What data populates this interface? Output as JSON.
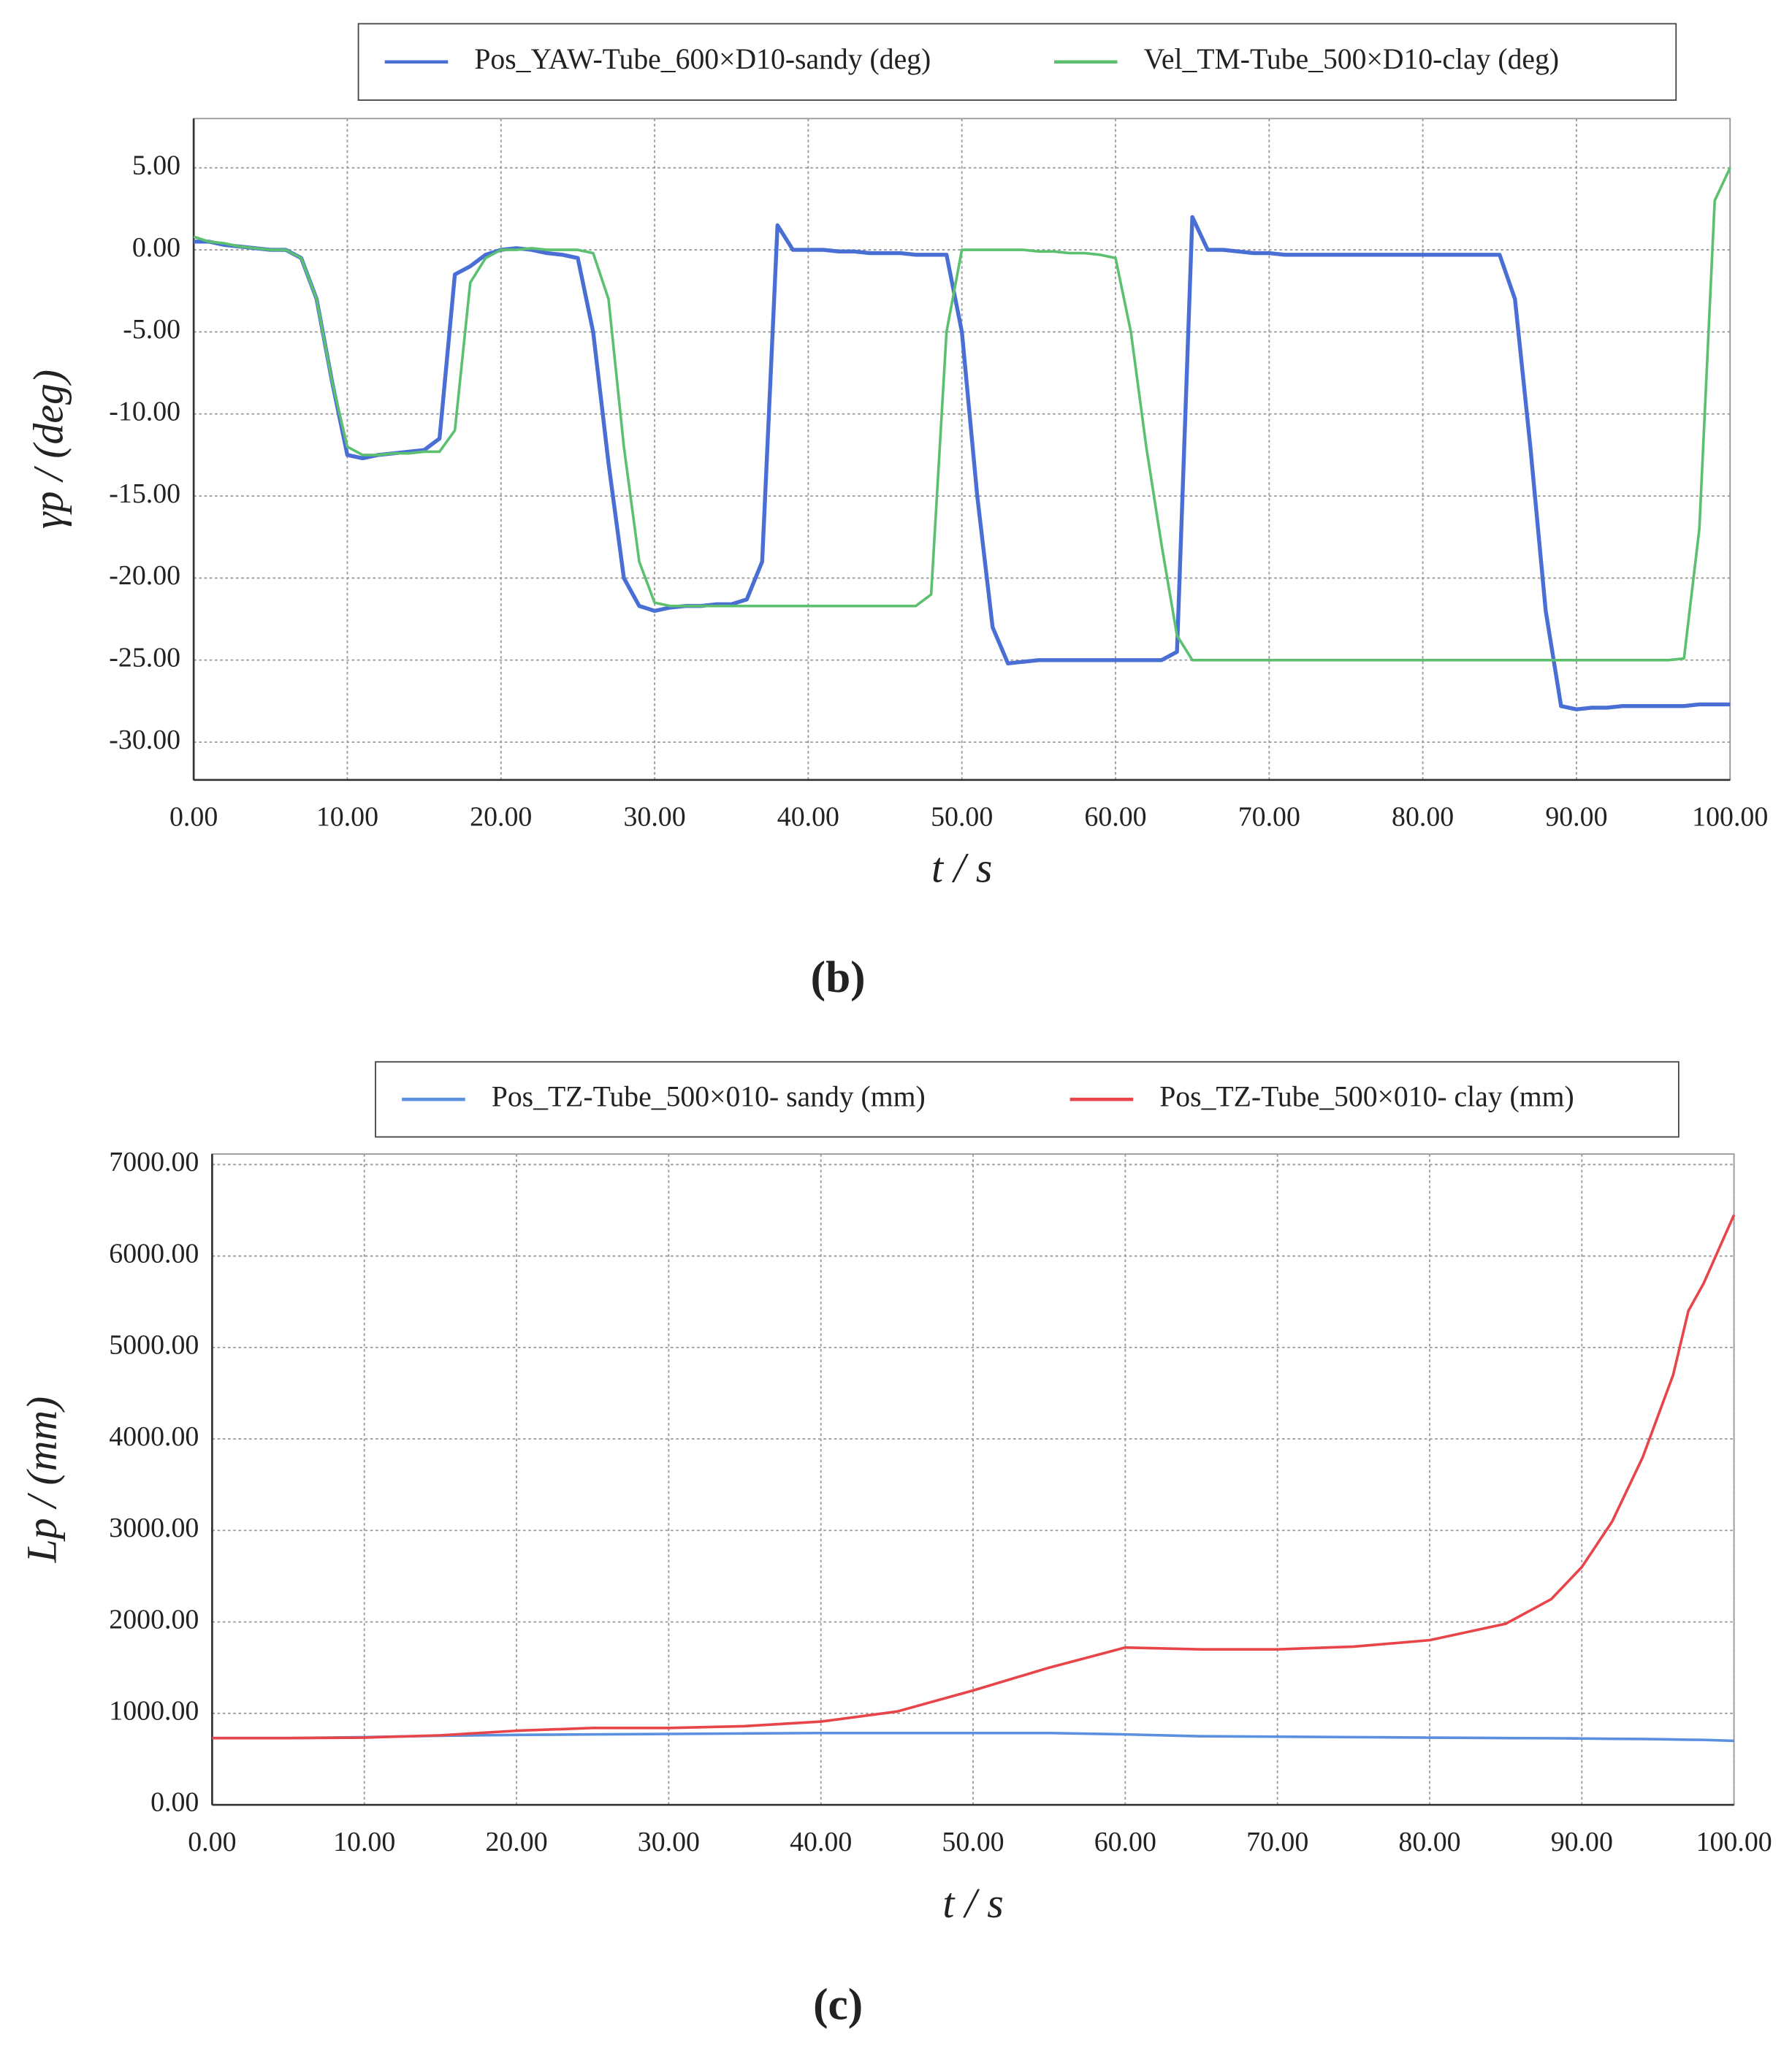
{
  "chart_data": [
    {
      "type": "line",
      "y_label": "γp / (deg)",
      "x_label": "t / s",
      "caption": "(b)",
      "x": [
        0,
        1,
        2,
        3,
        4,
        5,
        6,
        7,
        8,
        9,
        10,
        11,
        12,
        13,
        14,
        15,
        16,
        17,
        18,
        19,
        20,
        21,
        22,
        23,
        24,
        25,
        26,
        27,
        28,
        29,
        30,
        31,
        32,
        33,
        34,
        35,
        36,
        37,
        38,
        39,
        40,
        41,
        42,
        43,
        44,
        45,
        46,
        47,
        48,
        49,
        50,
        51,
        52,
        53,
        54,
        55,
        56,
        57,
        58,
        59,
        60,
        61,
        62,
        63,
        64,
        65,
        66,
        67,
        68,
        69,
        70,
        71,
        72,
        73,
        74,
        75,
        76,
        77,
        78,
        79,
        80,
        81,
        82,
        83,
        84,
        85,
        86,
        87,
        88,
        89,
        90,
        91,
        92,
        93,
        94,
        95,
        96,
        97,
        98,
        99,
        100
      ],
      "series": [
        {
          "name": "Pos_YAW-Tube_600×D10-sandy (deg)",
          "color": "#4a6fd4",
          "width": 3,
          "values": [
            0.5,
            0.5,
            0.3,
            0.2,
            0.1,
            0,
            0,
            -0.5,
            -3,
            -8,
            -12.5,
            -12.7,
            -12.5,
            -12.4,
            -12.3,
            -12.2,
            -11.5,
            -1.5,
            -1,
            -0.3,
            0,
            0.1,
            0,
            -0.2,
            -0.3,
            -0.5,
            -5,
            -13,
            -20,
            -21.7,
            -22,
            -21.8,
            -21.7,
            -21.7,
            -21.6,
            -21.6,
            -21.3,
            -19,
            1.5,
            0,
            0,
            0,
            -0.1,
            -0.1,
            -0.2,
            -0.2,
            -0.2,
            -0.3,
            -0.3,
            -0.3,
            -5,
            -15,
            -23,
            -25.2,
            -25.1,
            -25,
            -25,
            -25,
            -25,
            -25,
            -25,
            -25,
            -25,
            -25,
            -24.5,
            2,
            0,
            0,
            -0.1,
            -0.2,
            -0.2,
            -0.3,
            -0.3,
            -0.3,
            -0.3,
            -0.3,
            -0.3,
            -0.3,
            -0.3,
            -0.3,
            -0.3,
            -0.3,
            -0.3,
            -0.3,
            -0.3,
            -0.3,
            -3,
            -12,
            -22,
            -27.8,
            -28,
            -27.9,
            -27.9,
            -27.8,
            -27.8,
            -27.8,
            -27.8,
            -27.8,
            -27.7,
            -27.7,
            -27.7
          ]
        },
        {
          "name": "Vel_TM-Tube_500×D10-clay (deg)",
          "color": "#5cc070",
          "width": 2,
          "values": [
            0.8,
            0.5,
            0.4,
            0.2,
            0.1,
            0,
            0,
            -0.5,
            -3,
            -8,
            -12,
            -12.5,
            -12.5,
            -12.4,
            -12.4,
            -12.3,
            -12.3,
            -11,
            -2,
            -0.5,
            0,
            0,
            0.1,
            0,
            0,
            0,
            -0.2,
            -3,
            -12,
            -19,
            -21.5,
            -21.7,
            -21.7,
            -21.7,
            -21.7,
            -21.7,
            -21.7,
            -21.7,
            -21.7,
            -21.7,
            -21.7,
            -21.7,
            -21.7,
            -21.7,
            -21.7,
            -21.7,
            -21.7,
            -21.7,
            -21,
            -5,
            0,
            0,
            0,
            0,
            0,
            -0.1,
            -0.1,
            -0.2,
            -0.2,
            -0.3,
            -0.5,
            -5,
            -12,
            -18,
            -23.5,
            -25,
            -25,
            -25,
            -25,
            -25,
            -25,
            -25,
            -25,
            -25,
            -25,
            -25,
            -25,
            -25,
            -25,
            -25,
            -25,
            -25,
            -25,
            -25,
            -25,
            -25,
            -25,
            -25,
            -25,
            -25,
            -25,
            -25,
            -25,
            -25,
            -25,
            -25,
            -25,
            -24.9,
            -17,
            3,
            5
          ]
        }
      ],
      "xlim": [
        0,
        100
      ],
      "xticks": [
        {
          "value": 0,
          "label": "0.00"
        },
        {
          "value": 10,
          "label": "10.00"
        },
        {
          "value": 20,
          "label": "20.00"
        },
        {
          "value": 30,
          "label": "30.00"
        },
        {
          "value": 40,
          "label": "40.00"
        },
        {
          "value": 50,
          "label": "50.00"
        },
        {
          "value": 60,
          "label": "60.00"
        },
        {
          "value": 70,
          "label": "70.00"
        },
        {
          "value": 80,
          "label": "80.00"
        },
        {
          "value": 90,
          "label": "90.00"
        },
        {
          "value": 100,
          "label": "100.00"
        }
      ],
      "ylim": [
        -32.3,
        8
      ],
      "yticks": [
        {
          "value": 5,
          "label": "5.00"
        },
        {
          "value": 0,
          "label": "0.00"
        },
        {
          "value": -5,
          "label": "-5.00"
        },
        {
          "value": -10,
          "label": "-10.00"
        },
        {
          "value": -15,
          "label": "-15.00"
        },
        {
          "value": -20,
          "label": "-20.00"
        },
        {
          "value": -25,
          "label": "-25.00"
        },
        {
          "value": -30,
          "label": "-30.00"
        }
      ],
      "grid": true,
      "legend": "top"
    },
    {
      "type": "line",
      "y_label": "Lp / (mm)",
      "x_label": "t / s",
      "caption": "(c)",
      "x": [
        0,
        5,
        10,
        15,
        20,
        25,
        30,
        35,
        40,
        45,
        50,
        55,
        60,
        65,
        70,
        75,
        80,
        85,
        88,
        90,
        92,
        94,
        96,
        97,
        98,
        100
      ],
      "series": [
        {
          "name": "Pos_TZ-Tube_500×010- sandy (mm)",
          "color": "#5b8fe0",
          "width": 2,
          "values": [
            730,
            730,
            740,
            755,
            765,
            770,
            775,
            780,
            785,
            785,
            785,
            785,
            770,
            750,
            745,
            740,
            735,
            730,
            728,
            725,
            722,
            720,
            715,
            712,
            710,
            700
          ]
        },
        {
          "name": "Pos_TZ-Tube_500×010- clay (mm)",
          "color": "#e8454a",
          "width": 2,
          "values": [
            730,
            730,
            735,
            760,
            810,
            840,
            840,
            860,
            910,
            1020,
            1250,
            1500,
            1720,
            1700,
            1700,
            1730,
            1800,
            1980,
            2250,
            2600,
            3100,
            3800,
            4700,
            5400,
            5700,
            6450
          ]
        }
      ],
      "xlim": [
        0,
        100
      ],
      "xticks": [
        {
          "value": 0,
          "label": "0.00"
        },
        {
          "value": 10,
          "label": "10.00"
        },
        {
          "value": 20,
          "label": "20.00"
        },
        {
          "value": 30,
          "label": "30.00"
        },
        {
          "value": 40,
          "label": "40.00"
        },
        {
          "value": 50,
          "label": "50.00"
        },
        {
          "value": 60,
          "label": "60.00"
        },
        {
          "value": 70,
          "label": "70.00"
        },
        {
          "value": 80,
          "label": "80.00"
        },
        {
          "value": 90,
          "label": "90.00"
        },
        {
          "value": 100,
          "label": "100.00"
        }
      ],
      "ylim": [
        0,
        7115
      ],
      "yticks": [
        {
          "value": 0,
          "label": "0.00"
        },
        {
          "value": 1000,
          "label": "1000.00"
        },
        {
          "value": 2000,
          "label": "2000.00"
        },
        {
          "value": 3000,
          "label": "3000.00"
        },
        {
          "value": 4000,
          "label": "4000.00"
        },
        {
          "value": 5000,
          "label": "5000.00"
        },
        {
          "value": 6000,
          "label": "6000.00"
        },
        {
          "value": 7000,
          "label": "7000.00"
        }
      ],
      "grid": true,
      "legend": "top"
    }
  ]
}
